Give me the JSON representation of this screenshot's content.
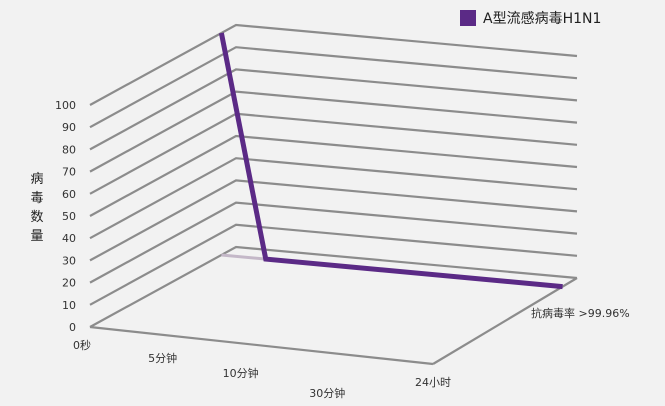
{
  "chart_data": {
    "type": "line",
    "style": "3d",
    "ylabel": "病毒数量",
    "ylim": [
      0,
      100
    ],
    "y_ticks": [
      "0",
      "10",
      "20",
      "30",
      "40",
      "50",
      "60",
      "70",
      "80",
      "90",
      "100"
    ],
    "categories": [
      "0秒",
      "5分钟",
      "10分钟",
      "30分钟",
      "24小时"
    ],
    "series": [
      {
        "name": "A型流感病毒H1N1",
        "color": "#5b2a86",
        "points": [
          {
            "x": "0秒",
            "y": 100
          },
          {
            "x": "5分钟",
            "y": 0
          },
          {
            "x": "24小时",
            "y": 0
          }
        ]
      }
    ],
    "annotation": "抗病毒率 >99.96%",
    "legend_position": "top-right",
    "grid": true
  },
  "colors": {
    "series": "#5b2a86",
    "grid": "#8c8c8c",
    "base_line": "#c4b8c8"
  }
}
